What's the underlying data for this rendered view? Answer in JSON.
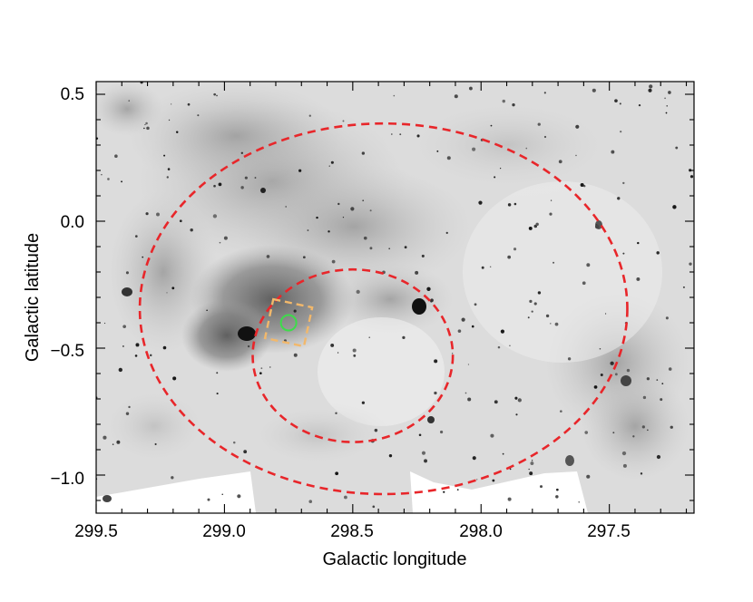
{
  "axes": {
    "xlabel": "Galactic longitude",
    "ylabel": "Galactic latitude",
    "x_ticks": [
      "299.5",
      "299.0",
      "298.5",
      "298.0",
      "297.5"
    ],
    "y_ticks": [
      "0.5",
      "0.0",
      "−0.5",
      "−1.0"
    ],
    "x_range": [
      299.5,
      297.17
    ],
    "y_range": [
      -1.15,
      0.55
    ],
    "x_reversed": true
  },
  "image": {
    "description_kind": "greyscale infrared map",
    "colormap": "inverted grey",
    "background": "#ffffff"
  },
  "overlays": {
    "outer_ellipse": {
      "center_l": 298.38,
      "center_b": -0.345,
      "semi_l": 0.95,
      "semi_b": 0.73,
      "color": "#e8262a",
      "style": "dashed"
    },
    "inner_ellipse": {
      "center_l": 298.5,
      "center_b": -0.53,
      "semi_l": 0.39,
      "semi_b": 0.34,
      "color": "#e8262a",
      "style": "dashed"
    },
    "box": {
      "center_l": 298.75,
      "center_b": -0.4,
      "size_deg": 0.155,
      "rotation_deg": 12,
      "color": "#f2b86b",
      "style": "dashed"
    },
    "marker": {
      "center_l": 298.75,
      "center_b": -0.4,
      "radius_deg": 0.03,
      "color": "#3ddc4a"
    }
  }
}
